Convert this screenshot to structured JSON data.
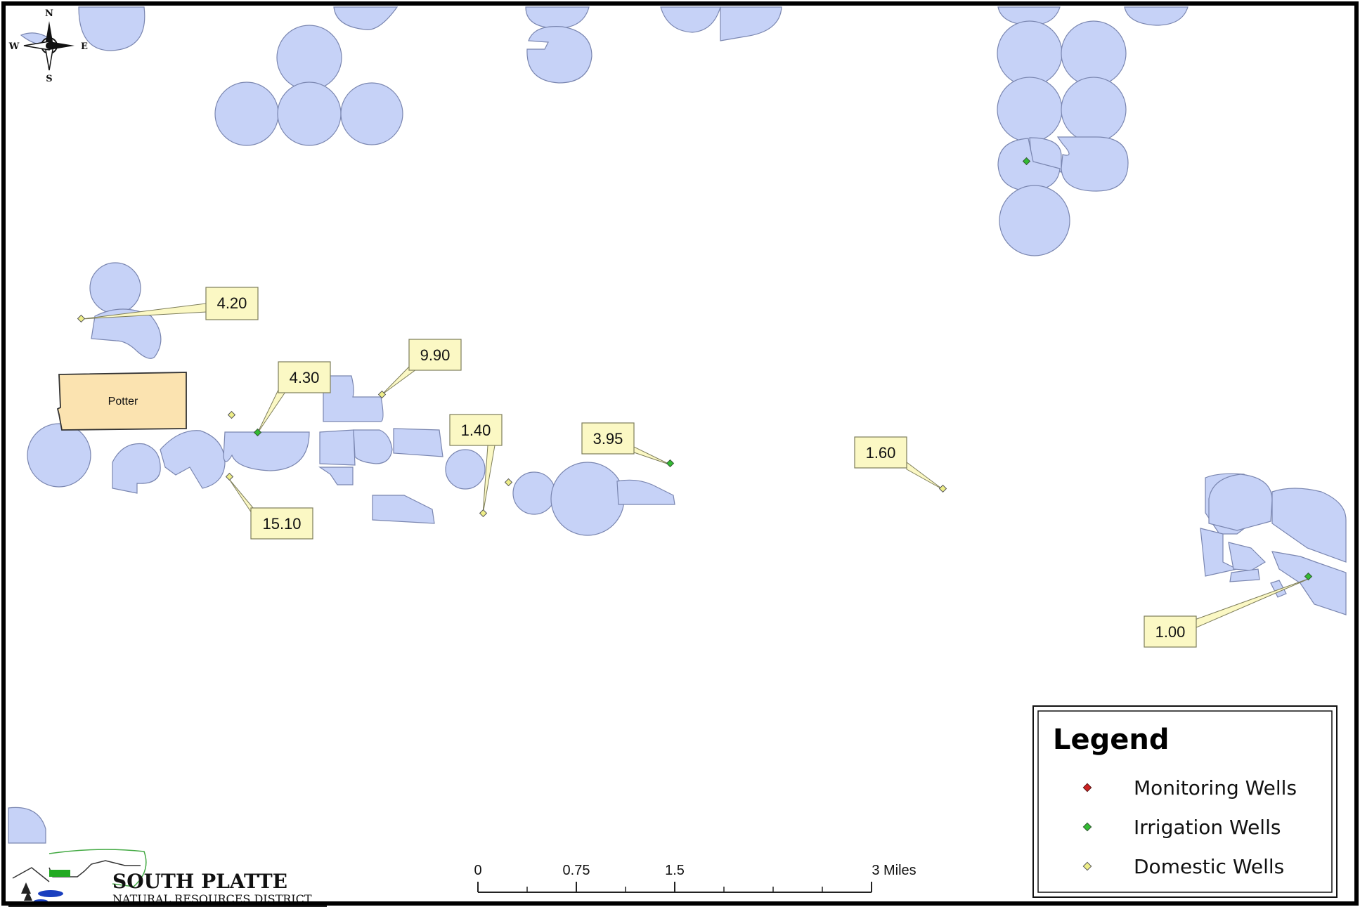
{
  "county_label": "Potter",
  "compass": {
    "n": "N",
    "s": "S",
    "e": "E",
    "w": "W"
  },
  "well_labels": [
    "4.20",
    "4.30",
    "9.90",
    "1.40",
    "3.95",
    "1.60",
    "15.10",
    "1.00"
  ],
  "scale_bar": {
    "ticks": [
      "0",
      "0.75",
      "1.5",
      "3 Miles"
    ]
  },
  "legend": {
    "title": "Legend",
    "items": [
      {
        "label": "Monitoring Wells",
        "color": "#cc2222"
      },
      {
        "label": "Irrigation Wells",
        "color": "#33bb33"
      },
      {
        "label": "Domestic Wells",
        "color": "#eeee88"
      }
    ]
  },
  "logo": {
    "title": "SOUTH PLATTE",
    "subtitle": "NATURAL RESOURCES DISTRICT"
  },
  "colors": {
    "parcel_fill": "#c6d2f7",
    "county_fill": "#fbe3b0",
    "label_fill": "#fbf8c4"
  }
}
